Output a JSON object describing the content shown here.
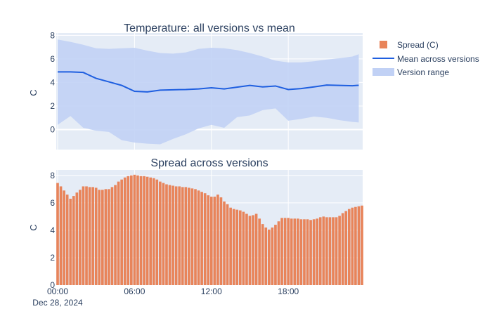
{
  "chart_data": [
    {
      "type": "line",
      "title": "Temperature: all versions vs mean",
      "ylabel": "C",
      "ylim": [
        -1.7,
        8.2
      ],
      "yticks": [
        0,
        2,
        4,
        6,
        8
      ],
      "x_start": "2024-12-28 00:00",
      "x_end": "2024-12-28 23:30",
      "x_step_minutes": 30,
      "grid": true,
      "series": [
        {
          "name": "Mean across versions",
          "color": "#1f5fe0",
          "times": [
            "00:00",
            "01:00",
            "02:00",
            "03:00",
            "04:00",
            "05:00",
            "05:30",
            "06:00",
            "07:00",
            "08:00",
            "09:00",
            "10:00",
            "11:00",
            "12:00",
            "13:00",
            "14:00",
            "15:00",
            "16:00",
            "17:00",
            "18:00",
            "19:00",
            "20:00",
            "21:00",
            "22:00",
            "23:00",
            "23:30"
          ],
          "values": [
            4.9,
            4.9,
            4.85,
            4.35,
            4.05,
            3.75,
            3.5,
            3.25,
            3.2,
            3.35,
            3.38,
            3.4,
            3.45,
            3.55,
            3.45,
            3.6,
            3.75,
            3.62,
            3.7,
            3.4,
            3.48,
            3.62,
            3.78,
            3.75,
            3.72,
            3.76
          ]
        },
        {
          "name": "Version range",
          "color": "#c1d1f5",
          "times": [
            "00:00",
            "01:00",
            "02:00",
            "03:00",
            "04:00",
            "05:00",
            "06:00",
            "07:00",
            "08:00",
            "09:00",
            "10:00",
            "11:00",
            "12:00",
            "13:00",
            "14:00",
            "15:00",
            "16:00",
            "17:00",
            "18:00",
            "19:00",
            "20:00",
            "21:00",
            "22:00",
            "23:00",
            "23:30"
          ],
          "upper": [
            7.65,
            7.45,
            7.2,
            6.9,
            6.85,
            6.9,
            6.95,
            6.7,
            6.5,
            6.45,
            6.55,
            6.85,
            6.95,
            6.9,
            6.75,
            6.5,
            6.2,
            5.85,
            5.7,
            5.7,
            5.8,
            5.95,
            6.05,
            6.2,
            6.4
          ],
          "lower": [
            0.4,
            1.15,
            0.15,
            -0.1,
            -0.2,
            -0.9,
            -1.1,
            -1.2,
            -1.25,
            -0.8,
            -0.4,
            0.1,
            0.4,
            0.15,
            1.05,
            1.2,
            1.65,
            1.8,
            0.75,
            0.9,
            1.1,
            1.0,
            0.8,
            0.65,
            0.6
          ]
        }
      ]
    },
    {
      "type": "bar",
      "title": "Spread across versions",
      "ylabel": "C",
      "ylim": [
        0,
        8.4
      ],
      "yticks": [
        0,
        2,
        4,
        6,
        8
      ],
      "x_start": "2024-12-28 00:00",
      "x_step_minutes": 15,
      "xticks": [
        "00:00",
        "06:00",
        "12:00",
        "18:00"
      ],
      "xtick_date": "Dec 28, 2024",
      "series": [
        {
          "name": "Spread (C)",
          "color": "#e8845a",
          "values": [
            7.45,
            7.2,
            6.9,
            6.6,
            6.3,
            6.5,
            6.75,
            6.95,
            7.2,
            7.2,
            7.15,
            7.15,
            7.1,
            6.95,
            6.95,
            7.0,
            7.0,
            7.15,
            7.3,
            7.55,
            7.7,
            7.85,
            7.95,
            8.0,
            8.05,
            8.0,
            7.95,
            7.95,
            7.9,
            7.85,
            7.8,
            7.7,
            7.55,
            7.45,
            7.35,
            7.3,
            7.25,
            7.2,
            7.2,
            7.15,
            7.15,
            7.1,
            7.05,
            7.0,
            6.9,
            6.8,
            6.7,
            6.55,
            6.45,
            6.45,
            6.6,
            6.4,
            6.1,
            5.9,
            5.65,
            5.55,
            5.5,
            5.45,
            5.35,
            5.2,
            5.05,
            5.1,
            5.2,
            4.85,
            4.45,
            4.2,
            4.05,
            4.2,
            4.4,
            4.65,
            4.9,
            4.9,
            4.9,
            4.85,
            4.85,
            4.85,
            4.8,
            4.8,
            4.8,
            4.75,
            4.8,
            4.85,
            4.95,
            5.0,
            4.95,
            4.95,
            4.95,
            4.95,
            5.05,
            5.25,
            5.4,
            5.55,
            5.65,
            5.7,
            5.75,
            5.8
          ]
        }
      ]
    }
  ],
  "legend": {
    "items": [
      {
        "label": "Spread (C)",
        "kind": "bar",
        "color": "#e8845a"
      },
      {
        "label": "Mean across versions",
        "kind": "line",
        "color": "#1f5fe0"
      },
      {
        "label": "Version range",
        "kind": "band",
        "color": "#c1d1f5"
      }
    ]
  }
}
